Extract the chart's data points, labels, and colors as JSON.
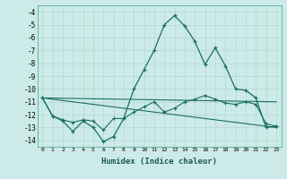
{
  "xlabel": "Humidex (Indice chaleur)",
  "background_color": "#cceae7",
  "line_color": "#1a6e65",
  "xlim": [
    -0.5,
    23.5
  ],
  "ylim": [
    -14.5,
    -3.5
  ],
  "yticks": [
    -14,
    -13,
    -12,
    -11,
    -10,
    -9,
    -8,
    -7,
    -6,
    -5,
    -4
  ],
  "xticks": [
    0,
    1,
    2,
    3,
    4,
    5,
    6,
    7,
    8,
    9,
    10,
    11,
    12,
    13,
    14,
    15,
    16,
    17,
    18,
    19,
    20,
    21,
    22,
    23
  ],
  "series_main": {
    "x": [
      0,
      1,
      2,
      3,
      4,
      5,
      6,
      7,
      8,
      9,
      10,
      11,
      12,
      13,
      14,
      15,
      16,
      17,
      18,
      19,
      20,
      21,
      22,
      23
    ],
    "y": [
      -10.7,
      -12.1,
      -12.5,
      -13.3,
      -12.5,
      -13.0,
      -14.1,
      -13.7,
      -12.3,
      -10.0,
      -8.5,
      -7.0,
      -5.0,
      -4.3,
      -5.1,
      -6.3,
      -8.1,
      -6.8,
      -8.2,
      -10.0,
      -10.1,
      -10.7,
      -13.0,
      -12.9
    ]
  },
  "series_second": {
    "x": [
      0,
      1,
      2,
      3,
      4,
      5,
      6,
      7,
      8,
      9,
      10,
      11,
      12,
      13,
      14,
      15,
      16,
      17,
      18,
      19,
      20,
      21,
      22,
      23
    ],
    "y": [
      -10.7,
      -12.1,
      -12.4,
      -12.6,
      -12.4,
      -12.5,
      -13.2,
      -12.3,
      -12.3,
      -11.8,
      -11.4,
      -11.0,
      -11.8,
      -11.5,
      -11.0,
      -10.8,
      -10.5,
      -10.8,
      -11.1,
      -11.2,
      -11.0,
      -11.2,
      -12.7,
      -12.9
    ]
  },
  "trend1": {
    "x": [
      0,
      23
    ],
    "y": [
      -10.7,
      -11.0
    ]
  },
  "trend2": {
    "x": [
      0,
      23
    ],
    "y": [
      -10.7,
      -13.0
    ]
  }
}
